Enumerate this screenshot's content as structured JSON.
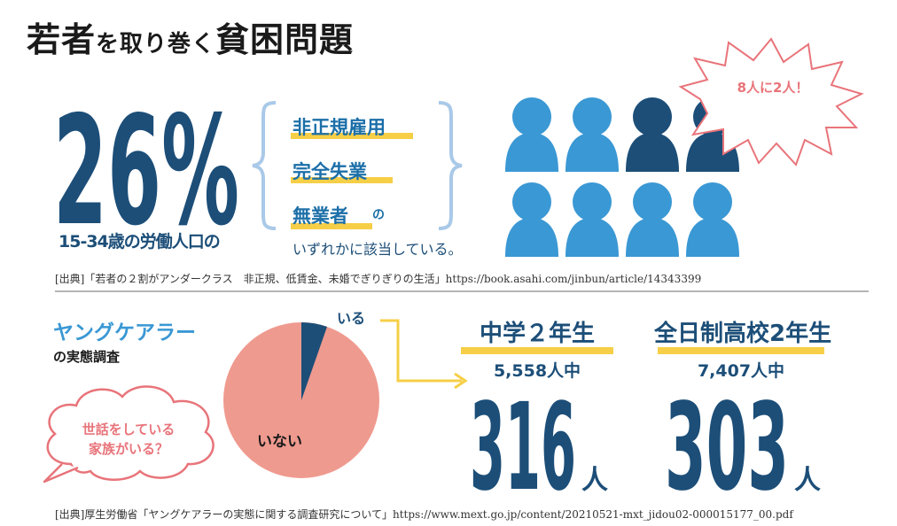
{
  "title": {
    "part1": "若者",
    "part2": "を取り巻く",
    "part3": "貧困問題"
  },
  "stat": {
    "percent": "26%",
    "age_label": "15-34歳の労働人口の",
    "categories": [
      "非正規雇用",
      "完全失業",
      "無業者"
    ],
    "suffix": "の",
    "description": "いずれかに該当している。"
  },
  "callout": "8人に2人！",
  "people_icons": {
    "total": 8,
    "highlighted": 2,
    "icon": "person-icon"
  },
  "source1": "[出典]「若者の２割がアンダークラス　非正規、低賃金、未婚でぎりぎりの生活」https://book.asahi.com/jinbun/article/14343399",
  "young_carer": {
    "title": "ヤングケアラー",
    "subtitle": "の実態調査",
    "question_line1": "世話をしている",
    "question_line2": "家族がいる？",
    "pie_yes_label": "いる",
    "pie_no_label": "いない"
  },
  "grades": [
    {
      "grade": "中学２年生",
      "total": "5,558人中",
      "count": "316",
      "unit": "人"
    },
    {
      "grade": "全日制高校2年生",
      "total": "7,407人中",
      "count": "303",
      "unit": "人"
    }
  ],
  "source2": "[出典]厚生労働省「ヤングケアラーの実態に関する調査研究について」https://www.mext.go.jp/content/20210521-mxt_jidou02-000015177_00.pdf",
  "colors": {
    "navy": "#1c4e78",
    "sky": "#3a98d4",
    "yellow": "#f6cf47",
    "salmon": "#ef9a8f",
    "pink": "#e8747a"
  }
}
